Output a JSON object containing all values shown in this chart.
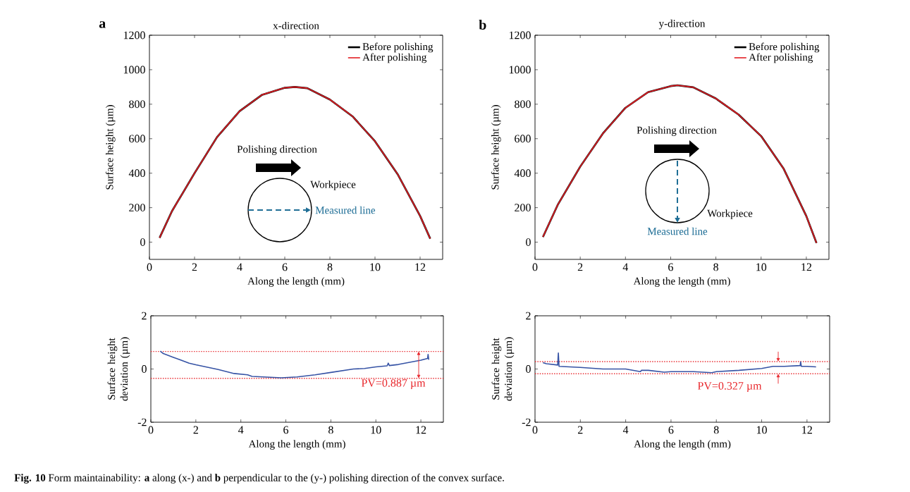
{
  "chart_data": [
    {
      "type": "line",
      "title": "x-direction",
      "xlabel": "Along the length (mm)",
      "ylabel": "Surface height (µm)",
      "xlim": [
        0,
        13
      ],
      "ylim": [
        -100,
        1200
      ],
      "xticks": [
        0,
        2,
        4,
        6,
        8,
        10,
        12
      ],
      "yticks": [
        0,
        200,
        400,
        600,
        800,
        1000,
        1200
      ],
      "legend": "top right",
      "annotations": [
        "a",
        "Polishing direction",
        "Workpiece",
        "Measured line"
      ],
      "x": [
        0.45,
        1,
        2,
        3,
        4,
        5,
        6,
        6.45,
        7,
        8,
        9,
        10,
        11,
        12,
        12.45
      ],
      "series": [
        {
          "name": "Before polishing",
          "color": "#000000",
          "values": [
            25,
            180,
            400,
            610,
            760,
            855,
            895,
            900,
            893,
            827,
            730,
            585,
            395,
            152,
            20
          ]
        },
        {
          "name": "After polishing",
          "color": "#e31e24",
          "values": [
            25,
            180,
            400,
            610,
            760,
            855,
            895,
            900,
            893,
            827,
            730,
            585,
            395,
            152,
            20
          ]
        }
      ]
    },
    {
      "type": "line",
      "title": "y-direction",
      "xlabel": "Along the length (mm)",
      "ylabel": "Surface height (µm)",
      "xlim": [
        0,
        13
      ],
      "ylim": [
        -100,
        1200
      ],
      "xticks": [
        0,
        2,
        4,
        6,
        8,
        10,
        12
      ],
      "yticks": [
        0,
        200,
        400,
        600,
        800,
        1000,
        1200
      ],
      "legend": "top right",
      "annotations": [
        "b",
        "Polishing direction",
        "Workpiece",
        "Measured line"
      ],
      "x": [
        0.35,
        1,
        2,
        3,
        4,
        5,
        6,
        6.3,
        7,
        8,
        9,
        10,
        11,
        12,
        12.45
      ],
      "series": [
        {
          "name": "Before polishing",
          "color": "#000000",
          "values": [
            30,
            215,
            438,
            630,
            779,
            870,
            905,
            910,
            898,
            833,
            740,
            615,
            425,
            151,
            -5
          ]
        },
        {
          "name": "After polishing",
          "color": "#e31e24",
          "values": [
            30,
            215,
            438,
            630,
            779,
            870,
            905,
            910,
            898,
            833,
            740,
            615,
            425,
            151,
            -5
          ]
        }
      ]
    },
    {
      "type": "line",
      "xlabel": "Along the length (mm)",
      "ylabel": "Surface height deviation (µm)",
      "xlim": [
        0,
        13
      ],
      "ylim": [
        -2,
        2
      ],
      "xticks": [
        0,
        2,
        4,
        6,
        8,
        10,
        12
      ],
      "yticks": [
        -2,
        0,
        2
      ],
      "annotations": [
        "PV=0.887 µm",
        "**Fig. 10** Form maintainability: **a** along (x-) and **b** perpendicular to the (y-) polishing direction of the convex surface."
      ],
      "ref_lines": [
        {
          "axis": "y",
          "value": 0.66,
          "color": "#e8262b",
          "line_style": "dotted"
        },
        {
          "axis": "y",
          "value": -0.35,
          "color": "#e8262b",
          "line_style": "dotted"
        }
      ],
      "x": [
        0.42,
        0.55,
        1,
        1.7,
        2,
        3,
        3.7,
        4.3,
        4.5,
        5,
        5.8,
        6.5,
        7.3,
        8,
        9,
        9.5,
        10,
        10.5,
        10.55,
        10.6,
        11,
        11.5,
        12,
        12.3,
        12.32,
        12.35
      ],
      "series": [
        {
          "color": "#3653a5",
          "values": [
            0.67,
            0.58,
            0.44,
            0.22,
            0.16,
            -0.02,
            -0.17,
            -0.22,
            -0.28,
            -0.3,
            -0.33,
            -0.3,
            -0.22,
            -0.13,
            0,
            0.02,
            0.08,
            0.12,
            0.22,
            0.13,
            0.17,
            0.25,
            0.33,
            0.4,
            0.55,
            0.35
          ]
        }
      ]
    },
    {
      "type": "line",
      "xlabel": "Along the length (mm)",
      "ylabel": "Surface height deviation (µm)",
      "xlim": [
        0,
        13
      ],
      "ylim": [
        -2,
        2
      ],
      "xticks": [
        0,
        2,
        4,
        6,
        8,
        10,
        12
      ],
      "yticks": [
        -2,
        0,
        2
      ],
      "annotations": [
        "PV=0.327 µm"
      ],
      "ref_lines": [
        {
          "axis": "y",
          "value": 0.28,
          "color": "#e8262b",
          "line_style": "dotted"
        },
        {
          "axis": "y",
          "value": -0.18,
          "color": "#e8262b",
          "line_style": "dotted"
        }
      ],
      "x": [
        0.35,
        0.5,
        1,
        1.03,
        1.06,
        2,
        3,
        4,
        4.65,
        4.7,
        5,
        5.7,
        6,
        7,
        7.8,
        8,
        9,
        10,
        10.5,
        11,
        11.7,
        11.72,
        11.75,
        12,
        12.4
      ],
      "series": [
        {
          "color": "#3653a5",
          "values": [
            0.24,
            0.2,
            0.15,
            0.6,
            0.1,
            0.06,
            0,
            0,
            -0.1,
            -0.05,
            -0.05,
            -0.12,
            -0.1,
            -0.1,
            -0.14,
            -0.1,
            -0.05,
            0.02,
            0.1,
            0.1,
            0.13,
            0.27,
            0.1,
            0.1,
            0.08
          ]
        }
      ]
    }
  ]
}
